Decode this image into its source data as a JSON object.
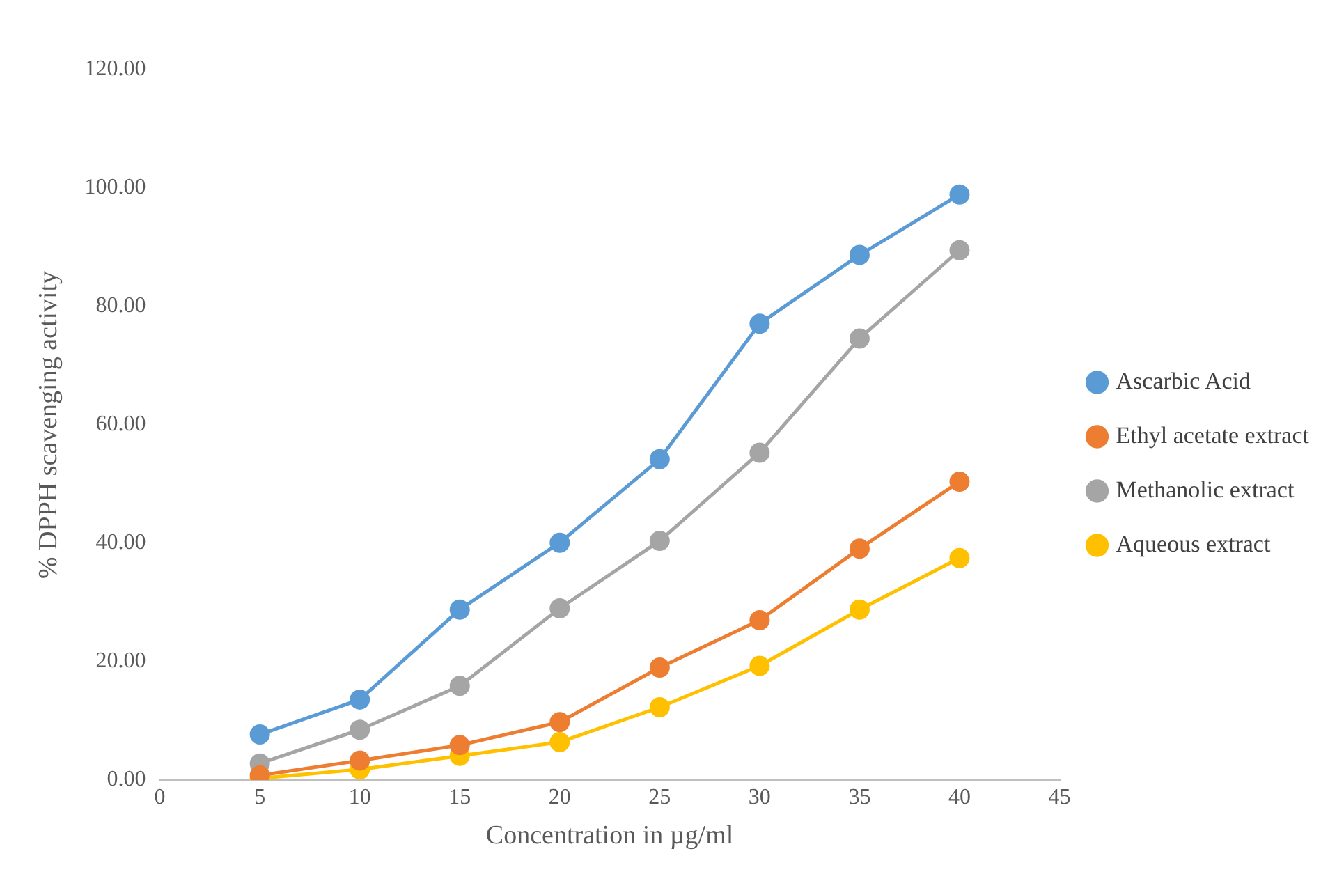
{
  "chart_data": {
    "type": "line",
    "xlabel": "Concentration in µg/ml",
    "ylabel": "% DPPH scavenging activity",
    "x": [
      5,
      10,
      15,
      20,
      25,
      30,
      35,
      40
    ],
    "series": [
      {
        "name": "Ascarbic Acid",
        "color": "#5b9bd5",
        "values": [
          7.7,
          13.6,
          28.8,
          40.1,
          54.2,
          77.1,
          88.7,
          98.9
        ]
      },
      {
        "name": "Ethyl acetate extract",
        "color": "#ed7d31",
        "values": [
          0.8,
          3.3,
          5.9,
          9.8,
          19.0,
          27.0,
          39.1,
          50.4
        ]
      },
      {
        "name": "Methanolic extract",
        "color": "#a5a5a5",
        "values": [
          2.8,
          8.5,
          15.9,
          29.0,
          40.4,
          55.3,
          74.6,
          89.5
        ]
      },
      {
        "name": "Aqueous extract",
        "color": "#ffc000",
        "values": [
          0.3,
          1.8,
          4.1,
          6.4,
          12.3,
          19.3,
          28.8,
          37.5
        ]
      }
    ],
    "xlim": [
      0,
      45
    ],
    "xticks": [
      0,
      5,
      10,
      15,
      20,
      25,
      30,
      35,
      40,
      45
    ],
    "ylim": [
      0,
      120
    ],
    "yticks": [
      {
        "value": 0,
        "label": "0.00"
      },
      {
        "value": 20,
        "label": "20.00"
      },
      {
        "value": 40,
        "label": "40.00"
      },
      {
        "value": 60,
        "label": "60.00"
      },
      {
        "value": 80,
        "label": "80.00"
      },
      {
        "value": 100,
        "label": "100.00"
      },
      {
        "value": 120,
        "label": "120.00"
      }
    ],
    "grid": false,
    "legend": "right",
    "marker": "circle",
    "line_style": "solid"
  }
}
